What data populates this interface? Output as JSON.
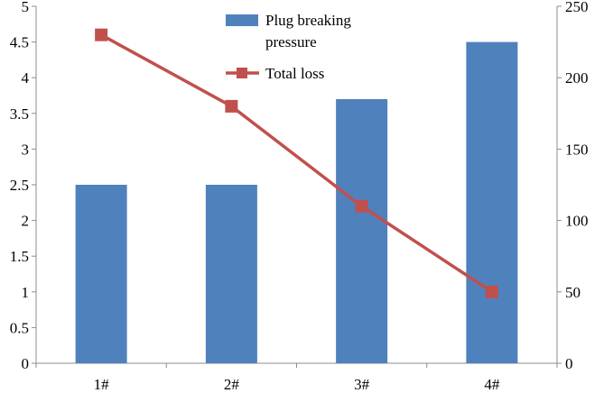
{
  "chart_data": {
    "type": "bar",
    "categories": [
      "1#",
      "2#",
      "3#",
      "4#"
    ],
    "series": [
      {
        "name": "Plug breaking pressure",
        "type": "bar",
        "axis": "left",
        "values": [
          2.5,
          2.5,
          3.7,
          4.5
        ],
        "color": "#4f81bd"
      },
      {
        "name": "Total loss",
        "type": "line",
        "axis": "right",
        "values": [
          230,
          180,
          110,
          50
        ],
        "color": "#c0504d",
        "marker": "square"
      }
    ],
    "y_left": {
      "range": [
        0,
        5
      ],
      "ticks": [
        "0",
        "0.5",
        "1",
        "1.5",
        "2",
        "2.5",
        "3",
        "3.5",
        "4",
        "4.5",
        "5"
      ]
    },
    "y_right": {
      "range": [
        0,
        250
      ],
      "ticks": [
        "0",
        "50",
        "100",
        "150",
        "200",
        "250"
      ]
    },
    "legend": {
      "placement": "top-center",
      "entries": [
        {
          "line1": "Plug breaking",
          "line2": "pressure"
        },
        {
          "line1": "Total loss"
        }
      ]
    },
    "grid": false
  }
}
